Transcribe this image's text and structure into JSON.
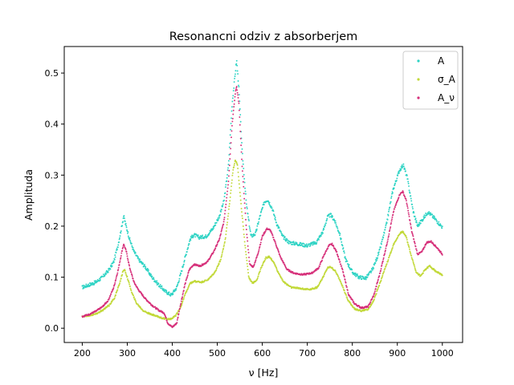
{
  "chart_data": {
    "type": "scatter",
    "title": "Resonancni odziv z absorberjem",
    "xlabel": "ν [Hz]",
    "ylabel": "Amplituda",
    "xlim": [
      160,
      1045
    ],
    "ylim": [
      -0.028,
      0.552
    ],
    "xticks": [
      200,
      300,
      400,
      500,
      600,
      700,
      800,
      900,
      1000
    ],
    "xtick_labels": [
      "200",
      "300",
      "400",
      "500",
      "600",
      "700",
      "800",
      "900",
      "1000"
    ],
    "yticks": [
      0.0,
      0.1,
      0.2,
      0.3,
      0.4,
      0.5
    ],
    "ytick_labels": [
      "0.0",
      "0.1",
      "0.2",
      "0.3",
      "0.4",
      "0.5"
    ],
    "grid": false,
    "legend_position": "top-right",
    "series": [
      {
        "name": "A",
        "color": "#2ed3c4",
        "points": [
          [
            200,
            0.08
          ],
          [
            215,
            0.085
          ],
          [
            230,
            0.09
          ],
          [
            245,
            0.1
          ],
          [
            260,
            0.115
          ],
          [
            270,
            0.13
          ],
          [
            280,
            0.165
          ],
          [
            288,
            0.2
          ],
          [
            292,
            0.22
          ],
          [
            296,
            0.205
          ],
          [
            305,
            0.175
          ],
          [
            315,
            0.15
          ],
          [
            325,
            0.135
          ],
          [
            340,
            0.12
          ],
          [
            355,
            0.1
          ],
          [
            370,
            0.085
          ],
          [
            385,
            0.072
          ],
          [
            398,
            0.065
          ],
          [
            410,
            0.08
          ],
          [
            420,
            0.11
          ],
          [
            432,
            0.15
          ],
          [
            440,
            0.175
          ],
          [
            448,
            0.183
          ],
          [
            460,
            0.178
          ],
          [
            475,
            0.18
          ],
          [
            490,
            0.195
          ],
          [
            505,
            0.22
          ],
          [
            515,
            0.25
          ],
          [
            525,
            0.32
          ],
          [
            533,
            0.44
          ],
          [
            540,
            0.5
          ],
          [
            543,
            0.525
          ],
          [
            548,
            0.47
          ],
          [
            555,
            0.35
          ],
          [
            565,
            0.24
          ],
          [
            575,
            0.18
          ],
          [
            585,
            0.185
          ],
          [
            595,
            0.22
          ],
          [
            605,
            0.248
          ],
          [
            612,
            0.252
          ],
          [
            622,
            0.235
          ],
          [
            632,
            0.205
          ],
          [
            645,
            0.18
          ],
          [
            660,
            0.168
          ],
          [
            680,
            0.165
          ],
          [
            700,
            0.162
          ],
          [
            720,
            0.168
          ],
          [
            735,
            0.19
          ],
          [
            745,
            0.218
          ],
          [
            752,
            0.222
          ],
          [
            760,
            0.212
          ],
          [
            772,
            0.185
          ],
          [
            785,
            0.135
          ],
          [
            800,
            0.11
          ],
          [
            815,
            0.1
          ],
          [
            830,
            0.098
          ],
          [
            845,
            0.115
          ],
          [
            860,
            0.15
          ],
          [
            875,
            0.2
          ],
          [
            890,
            0.27
          ],
          [
            905,
            0.31
          ],
          [
            913,
            0.32
          ],
          [
            922,
            0.295
          ],
          [
            935,
            0.23
          ],
          [
            945,
            0.2
          ],
          [
            955,
            0.212
          ],
          [
            968,
            0.228
          ],
          [
            980,
            0.218
          ],
          [
            993,
            0.205
          ],
          [
            1000,
            0.198
          ]
        ]
      },
      {
        "name": "σ_A",
        "color": "#c2d93a",
        "points": [
          [
            200,
            0.023
          ],
          [
            215,
            0.025
          ],
          [
            230,
            0.028
          ],
          [
            245,
            0.035
          ],
          [
            260,
            0.045
          ],
          [
            272,
            0.06
          ],
          [
            282,
            0.085
          ],
          [
            290,
            0.11
          ],
          [
            294,
            0.115
          ],
          [
            300,
            0.1
          ],
          [
            310,
            0.07
          ],
          [
            320,
            0.05
          ],
          [
            335,
            0.035
          ],
          [
            350,
            0.028
          ],
          [
            370,
            0.022
          ],
          [
            385,
            0.018
          ],
          [
            398,
            0.018
          ],
          [
            408,
            0.025
          ],
          [
            418,
            0.04
          ],
          [
            428,
            0.065
          ],
          [
            440,
            0.088
          ],
          [
            450,
            0.092
          ],
          [
            465,
            0.09
          ],
          [
            480,
            0.095
          ],
          [
            495,
            0.11
          ],
          [
            508,
            0.135
          ],
          [
            518,
            0.175
          ],
          [
            528,
            0.25
          ],
          [
            535,
            0.31
          ],
          [
            540,
            0.33
          ],
          [
            545,
            0.32
          ],
          [
            552,
            0.25
          ],
          [
            562,
            0.16
          ],
          [
            570,
            0.1
          ],
          [
            578,
            0.088
          ],
          [
            588,
            0.095
          ],
          [
            598,
            0.12
          ],
          [
            608,
            0.138
          ],
          [
            615,
            0.14
          ],
          [
            625,
            0.13
          ],
          [
            635,
            0.11
          ],
          [
            648,
            0.09
          ],
          [
            665,
            0.08
          ],
          [
            685,
            0.078
          ],
          [
            705,
            0.076
          ],
          [
            722,
            0.08
          ],
          [
            735,
            0.1
          ],
          [
            745,
            0.118
          ],
          [
            752,
            0.12
          ],
          [
            762,
            0.112
          ],
          [
            775,
            0.09
          ],
          [
            790,
            0.055
          ],
          [
            805,
            0.038
          ],
          [
            820,
            0.034
          ],
          [
            835,
            0.037
          ],
          [
            848,
            0.055
          ],
          [
            862,
            0.09
          ],
          [
            878,
            0.13
          ],
          [
            892,
            0.165
          ],
          [
            905,
            0.185
          ],
          [
            912,
            0.19
          ],
          [
            920,
            0.178
          ],
          [
            930,
            0.145
          ],
          [
            942,
            0.11
          ],
          [
            952,
            0.102
          ],
          [
            962,
            0.115
          ],
          [
            972,
            0.122
          ],
          [
            985,
            0.112
          ],
          [
            1000,
            0.104
          ]
        ]
      },
      {
        "name": "A_ν",
        "color": "#d6307a",
        "points": [
          [
            200,
            0.023
          ],
          [
            215,
            0.027
          ],
          [
            230,
            0.033
          ],
          [
            245,
            0.042
          ],
          [
            258,
            0.055
          ],
          [
            270,
            0.08
          ],
          [
            280,
            0.115
          ],
          [
            288,
            0.15
          ],
          [
            292,
            0.165
          ],
          [
            298,
            0.15
          ],
          [
            305,
            0.12
          ],
          [
            315,
            0.09
          ],
          [
            325,
            0.075
          ],
          [
            340,
            0.058
          ],
          [
            355,
            0.045
          ],
          [
            370,
            0.035
          ],
          [
            382,
            0.03
          ],
          [
            390,
            0.01
          ],
          [
            400,
            0.002
          ],
          [
            410,
            0.01
          ],
          [
            418,
            0.045
          ],
          [
            428,
            0.085
          ],
          [
            438,
            0.115
          ],
          [
            448,
            0.125
          ],
          [
            462,
            0.122
          ],
          [
            478,
            0.13
          ],
          [
            492,
            0.15
          ],
          [
            505,
            0.175
          ],
          [
            515,
            0.21
          ],
          [
            525,
            0.29
          ],
          [
            533,
            0.4
          ],
          [
            540,
            0.46
          ],
          [
            543,
            0.475
          ],
          [
            548,
            0.44
          ],
          [
            555,
            0.32
          ],
          [
            565,
            0.19
          ],
          [
            572,
            0.125
          ],
          [
            580,
            0.12
          ],
          [
            590,
            0.145
          ],
          [
            600,
            0.18
          ],
          [
            610,
            0.195
          ],
          [
            618,
            0.192
          ],
          [
            628,
            0.17
          ],
          [
            640,
            0.14
          ],
          [
            655,
            0.115
          ],
          [
            670,
            0.108
          ],
          [
            690,
            0.105
          ],
          [
            710,
            0.108
          ],
          [
            725,
            0.118
          ],
          [
            738,
            0.145
          ],
          [
            748,
            0.162
          ],
          [
            755,
            0.165
          ],
          [
            765,
            0.15
          ],
          [
            778,
            0.115
          ],
          [
            792,
            0.065
          ],
          [
            805,
            0.048
          ],
          [
            820,
            0.04
          ],
          [
            835,
            0.042
          ],
          [
            848,
            0.065
          ],
          [
            862,
            0.11
          ],
          [
            878,
            0.17
          ],
          [
            892,
            0.23
          ],
          [
            905,
            0.262
          ],
          [
            912,
            0.268
          ],
          [
            920,
            0.25
          ],
          [
            932,
            0.19
          ],
          [
            945,
            0.145
          ],
          [
            955,
            0.15
          ],
          [
            965,
            0.168
          ],
          [
            975,
            0.17
          ],
          [
            988,
            0.158
          ],
          [
            1000,
            0.145
          ]
        ]
      }
    ]
  }
}
